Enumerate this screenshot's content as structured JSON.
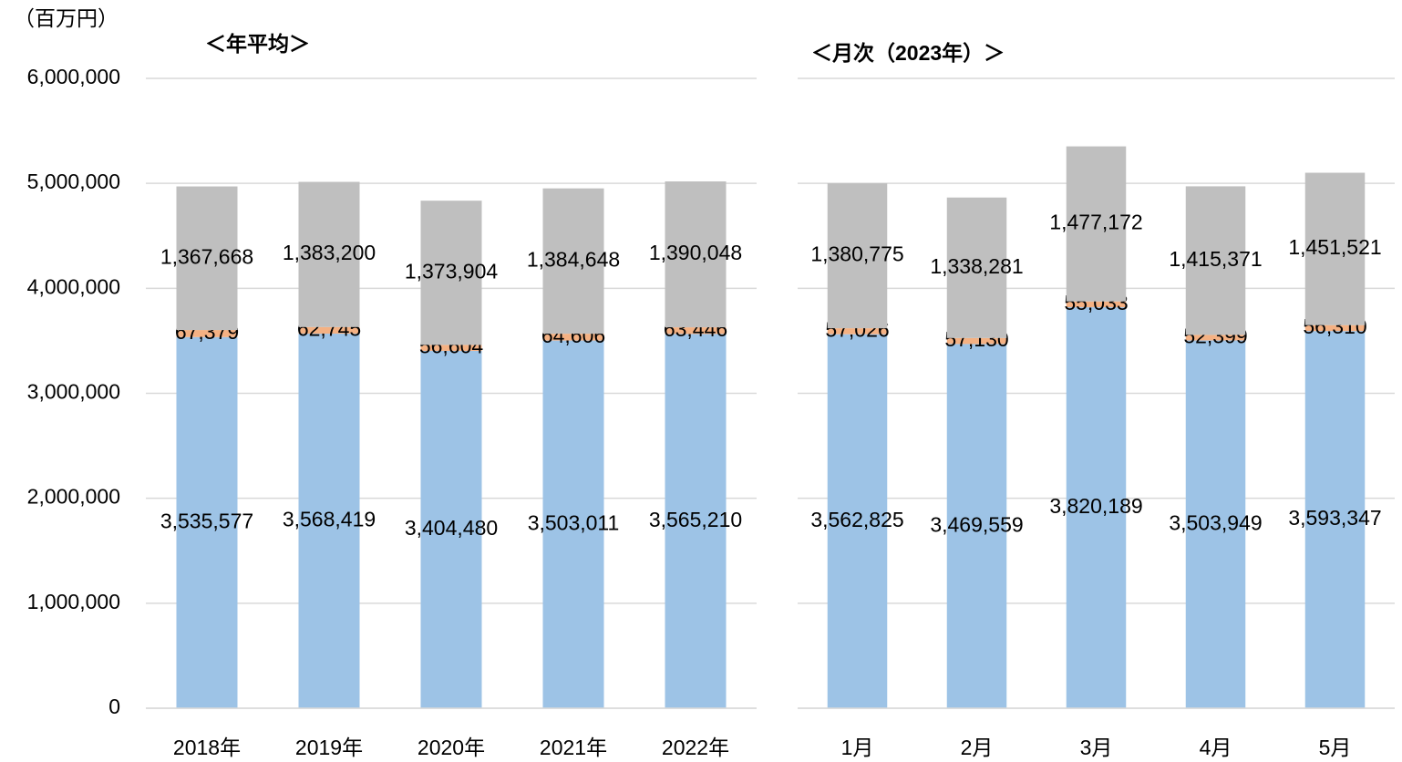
{
  "chart_data": [
    {
      "type": "bar",
      "stacked": true,
      "unit": "（百万円）",
      "title": "＜年平均＞",
      "categories": [
        "2018年",
        "2019年",
        "2020年",
        "2021年",
        "2022年"
      ],
      "series": [
        {
          "color": "#9dc3e6",
          "values": [
            3535577,
            3568419,
            3404480,
            3503011,
            3565210
          ],
          "value_labels": [
            "3,535,577",
            "3,568,419",
            "3,404,480",
            "3,503,011",
            "3,565,210"
          ]
        },
        {
          "color": "#f4b183",
          "values": [
            67379,
            62745,
            56604,
            64606,
            63446
          ],
          "value_labels": [
            "67,379",
            "62,745",
            "56,604",
            "64,606",
            "63,446"
          ]
        },
        {
          "color": "#bfbfbf",
          "values": [
            1367668,
            1383200,
            1373904,
            1384648,
            1390048
          ],
          "value_labels": [
            "1,367,668",
            "1,383,200",
            "1,373,904",
            "1,384,648",
            "1,390,048"
          ]
        }
      ],
      "ylim": [
        0,
        6000000
      ],
      "yticks": [
        0,
        {
          "value": 1000000,
          "label": "1,000,000"
        },
        {
          "value": 2000000,
          "label": "2,000,000"
        },
        {
          "value": 3000000,
          "label": "3,000,000"
        },
        {
          "value": 4000000,
          "label": "4,000,000"
        },
        {
          "value": 5000000,
          "label": "5,000,000"
        },
        {
          "value": 6000000,
          "label": "6,000,000"
        }
      ],
      "grid": true
    },
    {
      "type": "bar",
      "stacked": true,
      "title": "＜月次（2023年）＞",
      "categories": [
        "1月",
        "2月",
        "3月",
        "4月",
        "5月"
      ],
      "series": [
        {
          "color": "#9dc3e6",
          "values": [
            3562825,
            3469559,
            3820189,
            3503949,
            3593347
          ],
          "value_labels": [
            "3,562,825",
            "3,469,559",
            "3,820,189",
            "3,503,949",
            "3,593,347"
          ]
        },
        {
          "color": "#f4b183",
          "values": [
            57026,
            57130,
            55033,
            52399,
            56310
          ],
          "value_labels": [
            "57,026",
            "57,130",
            "55,033",
            "52,399",
            "56,310"
          ]
        },
        {
          "color": "#bfbfbf",
          "values": [
            1380775,
            1338281,
            1477172,
            1415371,
            1451521
          ],
          "value_labels": [
            "1,380,775",
            "1,338,281",
            "1,477,172",
            "1,415,371",
            "1,451,521"
          ]
        }
      ],
      "ylim": [
        0,
        6000000
      ],
      "grid": true
    }
  ]
}
